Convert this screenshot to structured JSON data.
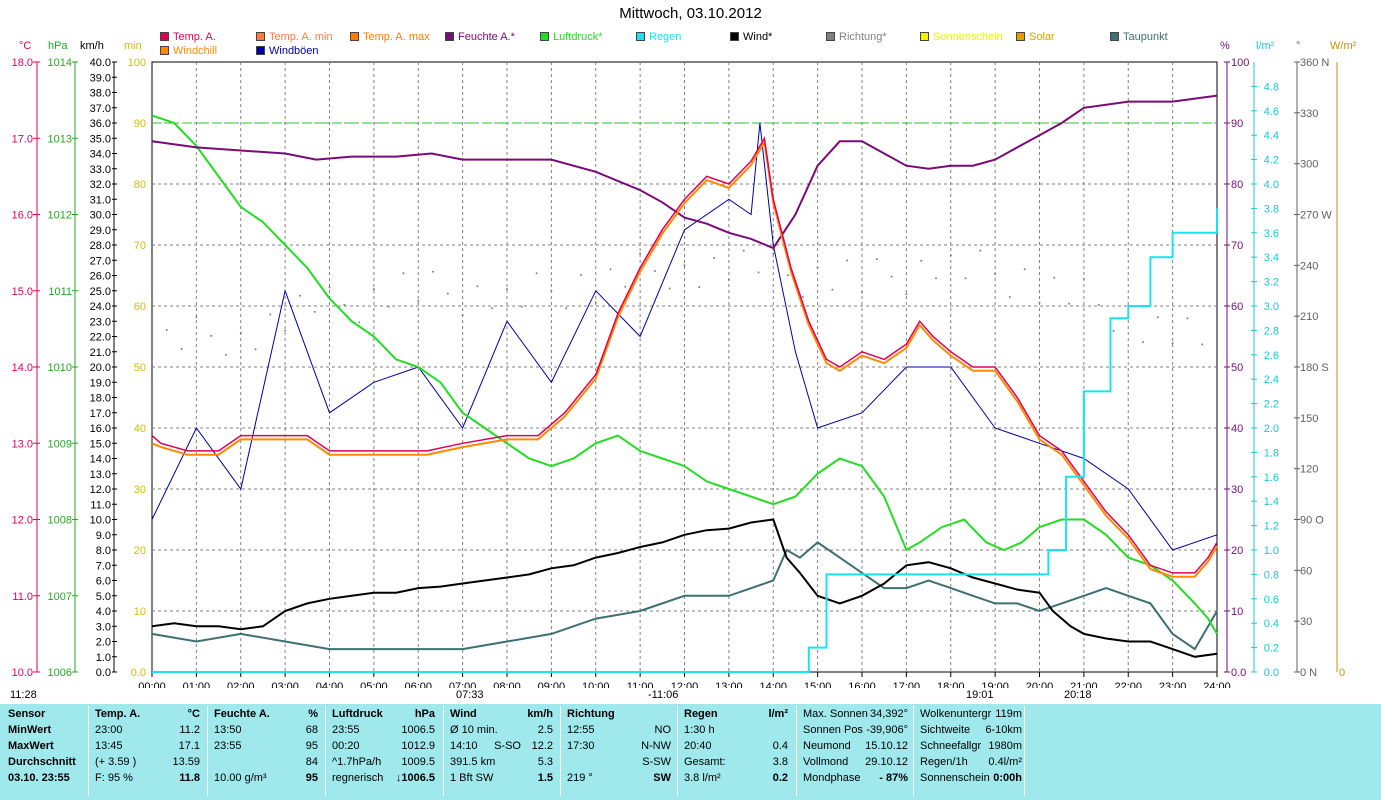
{
  "title": "Mittwoch, 03.10.2012",
  "legend": [
    {
      "label": "Temp. A.",
      "color": "#e0005a"
    },
    {
      "label": "Windchill",
      "color": "#ff8a00"
    },
    {
      "label": "Temp. A. min",
      "color": "#ff7a40"
    },
    {
      "label": "Windböen",
      "color": "#0000a0"
    },
    {
      "label": "Temp. A. max",
      "color": "#ff7a00"
    },
    {
      "label": "Feuchte A.*",
      "color": "#7a0a78"
    },
    {
      "label": "Luftdruck*",
      "color": "#22dd22"
    },
    {
      "label": "Regen",
      "color": "#18e4f0"
    },
    {
      "label": "Wind*",
      "color": "#000000"
    },
    {
      "label": "Richtung*",
      "color": "#808080"
    },
    {
      "label": "Sonnenschein",
      "color": "#f2f200"
    },
    {
      "label": "Solar",
      "color": "#e0a000"
    },
    {
      "label": "Taupunkt",
      "color": "#3d7070"
    }
  ],
  "axes": {
    "units_left": [
      "°C",
      "hPa",
      "km/h",
      "min"
    ],
    "units_right": [
      "%",
      "l/m²",
      "°",
      "W/m²"
    ],
    "temp_ticks": [
      "18.0",
      "17.0",
      "16.0",
      "15.0",
      "14.0",
      "13.0",
      "12.0",
      "11.0",
      "10.0"
    ],
    "hpa_ticks": [
      "1014",
      "1013",
      "1012",
      "1011",
      "1010",
      "1009",
      "1008",
      "1007",
      "1006"
    ],
    "wind_ticks": [
      "40.0",
      "39.0",
      "38.0",
      "37.0",
      "36.0",
      "35.0",
      "34.0",
      "33.0",
      "32.0",
      "31.0",
      "30.0",
      "29.0",
      "28.0",
      "27.0",
      "26.0",
      "25.0",
      "24.0",
      "23.0",
      "22.0",
      "21.0",
      "20.0",
      "19.0",
      "18.0",
      "17.0",
      "16.0",
      "15.0",
      "14.0",
      "13.0",
      "12.0",
      "11.0",
      "10.0",
      "9.0",
      "8.0",
      "7.0",
      "6.0",
      "5.0",
      "4.0",
      "3.0",
      "2.0",
      "1.0",
      "0.0"
    ],
    "min_ticks": [
      "100",
      "90",
      "80",
      "70",
      "60",
      "50",
      "40",
      "30",
      "20",
      "10",
      "0.0"
    ],
    "pct_ticks": [
      "100",
      "90",
      "80",
      "70",
      "60",
      "50",
      "40",
      "30",
      "20",
      "10",
      "0.0"
    ],
    "rain_ticks": [
      "4.8",
      "4.6",
      "4.4",
      "4.2",
      "4.0",
      "3.8",
      "3.6",
      "3.4",
      "3.2",
      "3.0",
      "2.8",
      "2.6",
      "2.4",
      "2.2",
      "2.0",
      "1.8",
      "1.6",
      "1.4",
      "1.2",
      "1.0",
      "0.8",
      "0.6",
      "0.4",
      "0.2",
      "0.0"
    ],
    "deg_ticks": [
      "360 N",
      "330",
      "300",
      "270 W",
      "240",
      "210",
      "180 S",
      "150",
      "120",
      "90 O",
      "60",
      "30",
      "0 N"
    ],
    "wm2_ticks": [
      "0"
    ],
    "x_ticks": [
      "00:00",
      "01:00",
      "02:00",
      "03:00",
      "04:00",
      "05:00",
      "06:00",
      "07:00",
      "08:00",
      "09:00",
      "10:00",
      "11:00",
      "12:00",
      "13:00",
      "14:00",
      "15:00",
      "16:00",
      "17:00",
      "18:00",
      "19:00",
      "20:00",
      "21:00",
      "22:00",
      "23:00",
      "24:00"
    ]
  },
  "events": {
    "left": "11:28",
    "sunrise": "07:33",
    "noon": "-11:06",
    "sunset": "19:01",
    "moonset": "20:18"
  },
  "chart_data": {
    "type": "line",
    "title": "Mittwoch, 03.10.2012",
    "x_unit": "hours",
    "xlim": [
      0,
      24
    ],
    "series": [
      {
        "name": "Temp. A.",
        "unit": "°C",
        "ylim": [
          10,
          18
        ],
        "x": [
          0,
          0.2,
          0.8,
          1.5,
          2,
          2.7,
          3.5,
          4,
          4.5,
          5.5,
          6.2,
          7,
          8,
          8.7,
          9.3,
          10,
          10.5,
          11,
          11.5,
          12,
          12.5,
          13,
          13.5,
          13.8,
          14,
          14.4,
          14.8,
          15.2,
          15.5,
          16,
          16.5,
          17,
          17.3,
          17.6,
          18,
          18.5,
          19,
          19.5,
          20,
          20.5,
          21,
          21.5,
          22,
          22.5,
          23,
          23.5,
          23.8,
          24
        ],
        "y": [
          13.1,
          13.0,
          12.9,
          12.9,
          13.1,
          13.1,
          13.1,
          12.9,
          12.9,
          12.9,
          12.9,
          13.0,
          13.1,
          13.1,
          13.4,
          13.9,
          14.7,
          15.3,
          15.8,
          16.2,
          16.5,
          16.4,
          16.7,
          17.0,
          16.2,
          15.3,
          14.6,
          14.1,
          14.0,
          14.2,
          14.1,
          14.3,
          14.6,
          14.4,
          14.2,
          14.0,
          14.0,
          13.6,
          13.1,
          12.9,
          12.5,
          12.1,
          11.8,
          11.4,
          11.3,
          11.3,
          11.5,
          11.7
        ]
      },
      {
        "name": "Windchill",
        "unit": "°C",
        "ylim": [
          10,
          18
        ],
        "x": [
          0,
          0.2,
          0.8,
          1.5,
          2,
          2.7,
          3.5,
          4,
          4.5,
          5.5,
          6.2,
          7,
          8,
          8.7,
          9.3,
          10,
          10.5,
          11,
          11.5,
          12,
          12.5,
          13,
          13.5,
          13.8,
          14,
          14.4,
          14.8,
          15.2,
          15.5,
          16,
          16.5,
          17,
          17.3,
          17.6,
          18,
          18.5,
          19,
          19.5,
          20,
          20.5,
          21,
          21.5,
          22,
          22.5,
          23,
          23.5,
          23.8,
          24
        ],
        "y": [
          13.0,
          12.95,
          12.85,
          12.85,
          13.05,
          13.05,
          13.05,
          12.85,
          12.85,
          12.85,
          12.85,
          12.95,
          13.05,
          13.05,
          13.35,
          13.85,
          14.65,
          15.25,
          15.75,
          16.15,
          16.45,
          16.35,
          16.65,
          16.95,
          16.15,
          15.25,
          14.55,
          14.05,
          13.95,
          14.15,
          14.05,
          14.25,
          14.55,
          14.35,
          14.15,
          13.95,
          13.95,
          13.55,
          13.05,
          12.85,
          12.45,
          12.05,
          11.75,
          11.35,
          11.25,
          11.25,
          11.45,
          11.65
        ]
      },
      {
        "name": "Feuchte A.*",
        "unit": "%",
        "ylim": [
          0,
          100
        ],
        "x": [
          0,
          1,
          2,
          3,
          3.7,
          4.5,
          5.5,
          6.3,
          7,
          8,
          9,
          10,
          11,
          11.5,
          12,
          12.5,
          13,
          13.5,
          14,
          14.5,
          15,
          15.5,
          16,
          16.5,
          17,
          17.5,
          18,
          18.5,
          19,
          19.5,
          20,
          20.5,
          21,
          21.5,
          22,
          22.5,
          23,
          23.5,
          24
        ],
        "y": [
          87,
          86,
          85.5,
          85,
          84,
          84.5,
          84.5,
          85,
          84,
          84,
          84,
          82,
          79,
          77,
          74.5,
          73.5,
          72,
          71,
          69.5,
          75,
          83,
          87,
          87,
          85,
          83,
          82.5,
          83,
          83,
          84,
          86,
          88,
          90,
          92.5,
          93,
          93.5,
          93.5,
          93.5,
          94,
          94.5
        ]
      },
      {
        "name": "Luftdruck*",
        "unit": "hPa",
        "ylim": [
          1006,
          1014
        ],
        "x": [
          0,
          0.5,
          1,
          1.5,
          2,
          2.5,
          3,
          3.5,
          4,
          4.5,
          5,
          5.5,
          6,
          6.5,
          7,
          7.5,
          8,
          8.5,
          9,
          9.5,
          10,
          10.5,
          11,
          11.5,
          12,
          12.5,
          13,
          13.5,
          14,
          14.5,
          15,
          15.5,
          16,
          16.5,
          17,
          17.3,
          17.8,
          18.3,
          18.8,
          19.2,
          19.6,
          20,
          20.5,
          21,
          21.5,
          22,
          22.5,
          23,
          23.5,
          23.8,
          24
        ],
        "y": [
          1013.3,
          1013.2,
          1012.9,
          1012.5,
          1012.1,
          1011.9,
          1011.6,
          1011.3,
          1010.9,
          1010.6,
          1010.4,
          1010.1,
          1010.0,
          1009.8,
          1009.4,
          1009.2,
          1009.0,
          1008.8,
          1008.7,
          1008.8,
          1009.0,
          1009.1,
          1008.9,
          1008.8,
          1008.7,
          1008.5,
          1008.4,
          1008.3,
          1008.2,
          1008.3,
          1008.6,
          1008.8,
          1008.7,
          1008.3,
          1007.6,
          1007.7,
          1007.9,
          1008.0,
          1007.7,
          1007.6,
          1007.7,
          1007.9,
          1008.0,
          1008.0,
          1007.8,
          1007.5,
          1007.4,
          1007.2,
          1006.9,
          1006.7,
          1006.5
        ]
      },
      {
        "name": "Regen",
        "unit": "l/m²",
        "ylim": [
          0,
          5
        ],
        "x": [
          0,
          14.4,
          14.8,
          15.2,
          20,
          20.2,
          20.6,
          21,
          21.6,
          22,
          22.5,
          23,
          23.6,
          24
        ],
        "y": [
          0,
          0,
          0.2,
          0.8,
          0.8,
          1.0,
          1.6,
          2.3,
          2.9,
          3.0,
          3.4,
          3.6,
          3.6,
          3.8
        ]
      },
      {
        "name": "Wind*",
        "unit": "km/h",
        "ylim": [
          0,
          40
        ],
        "x": [
          0,
          0.5,
          1,
          1.5,
          2,
          2.5,
          3,
          3.5,
          4,
          4.5,
          5,
          5.5,
          6,
          6.5,
          7,
          7.5,
          8,
          8.5,
          9,
          9.5,
          10,
          10.5,
          11,
          11.5,
          12,
          12.5,
          13,
          13.5,
          14,
          14.3,
          14.6,
          15,
          15.5,
          16,
          16.5,
          17,
          17.5,
          18,
          18.5,
          19,
          19.5,
          20,
          20.3,
          20.7,
          21,
          21.5,
          22,
          22.5,
          23,
          23.5,
          24
        ],
        "y": [
          3.0,
          3.2,
          3.0,
          3.0,
          2.8,
          3.0,
          4.0,
          4.5,
          4.8,
          5.0,
          5.2,
          5.2,
          5.5,
          5.6,
          5.8,
          6.0,
          6.2,
          6.4,
          6.8,
          7.0,
          7.5,
          7.8,
          8.2,
          8.5,
          9.0,
          9.3,
          9.4,
          9.8,
          10.0,
          7.5,
          6.5,
          5.0,
          4.5,
          5.0,
          5.8,
          7.0,
          7.2,
          6.8,
          6.2,
          5.8,
          5.4,
          5.2,
          4.0,
          3.0,
          2.5,
          2.2,
          2.0,
          2.0,
          1.5,
          1.0,
          1.2
        ]
      },
      {
        "name": "Taupunkt",
        "unit": "°C",
        "ylim": [
          10,
          18
        ],
        "x": [
          0,
          1,
          2,
          3,
          4,
          5,
          6,
          7,
          8,
          9,
          10,
          11,
          12,
          13,
          14,
          14.3,
          14.6,
          15,
          15.5,
          16,
          16.5,
          17,
          17.5,
          18,
          18.5,
          19,
          19.5,
          20,
          20.5,
          21,
          21.5,
          22,
          22.5,
          23,
          23.5,
          24
        ],
        "y": [
          10.5,
          10.4,
          10.5,
          10.4,
          10.3,
          10.3,
          10.3,
          10.3,
          10.4,
          10.5,
          10.7,
          10.8,
          11.0,
          11.0,
          11.2,
          11.6,
          11.5,
          11.7,
          11.5,
          11.3,
          11.1,
          11.1,
          11.2,
          11.1,
          11.0,
          10.9,
          10.9,
          10.8,
          10.9,
          11.0,
          11.1,
          11.0,
          10.9,
          10.5,
          10.3,
          10.8
        ]
      },
      {
        "name": "Windböen",
        "unit": "km/h",
        "ylim": [
          0,
          40
        ],
        "x": [
          0,
          1,
          2,
          3,
          4,
          5,
          6,
          7,
          8,
          9,
          10,
          11,
          12,
          13,
          13.5,
          13.7,
          14,
          14.5,
          15,
          16,
          17,
          18,
          19,
          20,
          21,
          22,
          23,
          24
        ],
        "y": [
          10,
          16,
          12,
          25,
          17,
          19,
          20,
          16,
          23,
          19,
          25,
          22,
          29,
          31,
          30,
          36,
          28,
          21,
          16,
          17,
          20,
          20,
          16,
          15,
          14,
          12,
          8,
          9
        ]
      },
      {
        "name": "Richtung*",
        "unit": "°",
        "ylim": [
          0,
          360
        ],
        "x": [
          0,
          2,
          4,
          6,
          8,
          10,
          12,
          14,
          16,
          18,
          20,
          22,
          24
        ],
        "y": [
          195,
          200,
          215,
          225,
          220,
          230,
          240,
          235,
          230,
          240,
          230,
          210,
          190
        ]
      }
    ]
  },
  "stats": {
    "sensor": {
      "header": "Sensor",
      "rows": [
        "MinWert",
        "MaxWert",
        "Durchschnitt",
        "03.10. 23:55"
      ]
    },
    "temp": {
      "header": "Temp. A.",
      "unit": "°C",
      "rows": [
        [
          "23:00",
          "11.2"
        ],
        [
          "13:45",
          "17.1"
        ],
        [
          "(+ 3.59 )",
          "13.59"
        ],
        [
          "F: 95 %",
          "11.8"
        ]
      ]
    },
    "humidity": {
      "header": "Feuchte A.",
      "unit": "%",
      "rows": [
        [
          "13:50",
          "68"
        ],
        [
          "23:55",
          "95"
        ],
        [
          "",
          "84"
        ],
        [
          "10.00 g/m³",
          "95"
        ]
      ]
    },
    "pressure": {
      "header": "Luftdruck",
      "unit": "hPa",
      "rows": [
        [
          "23:55",
          "1006.5"
        ],
        [
          "00:20",
          "1012.9"
        ],
        [
          "^1.7hPa/h",
          "1009.5"
        ],
        [
          "regnerisch",
          "↓1006.5"
        ]
      ]
    },
    "wind": {
      "header": "Wind",
      "unit": "km/h",
      "rows": [
        [
          "Ø 10 min.",
          "",
          "2.5"
        ],
        [
          "14:10",
          "S-SO",
          "12.2"
        ],
        [
          "391.5 km",
          "",
          "5.3"
        ],
        [
          "1 Bft SW",
          "",
          "1.5"
        ]
      ]
    },
    "direction": {
      "header": "Richtung",
      "rows": [
        [
          "12:55",
          "NO"
        ],
        [
          "17:30",
          "N-NW"
        ],
        [
          "",
          "S-SW"
        ],
        [
          "219 °",
          "SW"
        ]
      ]
    },
    "rain": {
      "header": "Regen",
      "unit": "l/m²",
      "rows": [
        [
          "1:30 h",
          ""
        ],
        [
          "20:40",
          "0.4"
        ],
        [
          "Gesamt:",
          "3.8"
        ],
        [
          "3.8 l/m²",
          "0.2"
        ]
      ]
    },
    "astro": {
      "rows": [
        [
          "Max. Sonnen",
          "34,392°"
        ],
        [
          "Sonnen Pos",
          "-39,906°"
        ],
        [
          "Neumond",
          "15.10.12"
        ],
        [
          "Vollmond",
          "29.10.12"
        ],
        [
          "Mondphase",
          "- 87%"
        ]
      ]
    },
    "weather": {
      "rows": [
        [
          "Wolkenuntergr",
          "119m"
        ],
        [
          "Sichtweite",
          "6-10km"
        ],
        [
          "Schneefallgr",
          "1980m"
        ],
        [
          "Regen/1h",
          "0.4l/m²"
        ],
        [
          "Sonnenschein",
          "0:00h"
        ]
      ]
    }
  }
}
